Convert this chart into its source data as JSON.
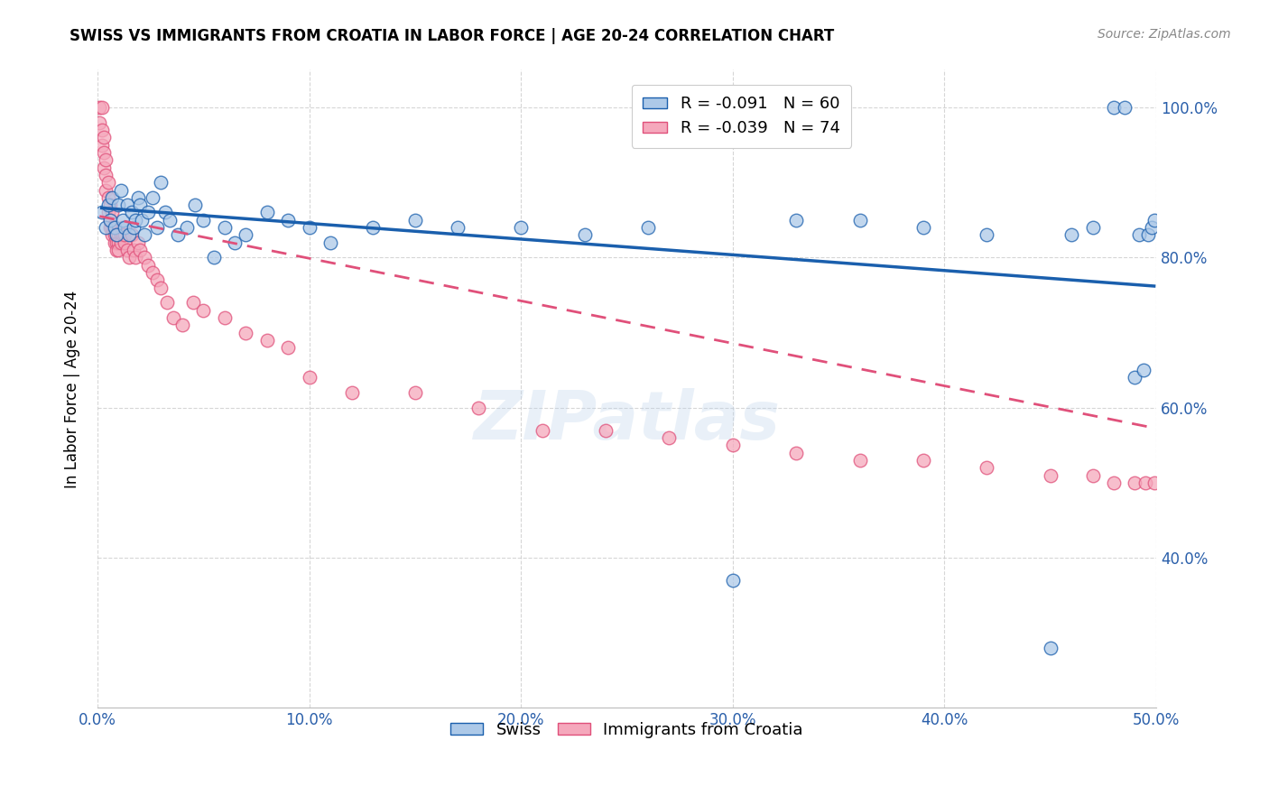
{
  "title": "SWISS VS IMMIGRANTS FROM CROATIA IN LABOR FORCE | AGE 20-24 CORRELATION CHART",
  "source": "Source: ZipAtlas.com",
  "ylabel": "In Labor Force | Age 20-24",
  "xlim": [
    0.0,
    0.5
  ],
  "ylim": [
    0.2,
    1.05
  ],
  "xticks": [
    0.0,
    0.1,
    0.2,
    0.3,
    0.4,
    0.5
  ],
  "yticks": [
    0.4,
    0.6,
    0.8,
    1.0
  ],
  "ytick_labels": [
    "40.0%",
    "60.0%",
    "80.0%",
    "100.0%"
  ],
  "xtick_labels": [
    "0.0%",
    "10.0%",
    "20.0%",
    "30.0%",
    "40.0%",
    "50.0%"
  ],
  "legend_r_swiss": "R = -0.091",
  "legend_n_swiss": "N = 60",
  "legend_r_croatia": "R = -0.039",
  "legend_n_croatia": "N = 74",
  "swiss_color": "#adc9e8",
  "croatia_color": "#f5a8bc",
  "swiss_line_color": "#1a5fad",
  "croatia_line_color": "#e0507a",
  "watermark": "ZIPatlas",
  "swiss_x": [
    0.002,
    0.004,
    0.005,
    0.006,
    0.007,
    0.008,
    0.009,
    0.01,
    0.011,
    0.012,
    0.013,
    0.014,
    0.015,
    0.016,
    0.017,
    0.018,
    0.019,
    0.02,
    0.021,
    0.022,
    0.024,
    0.026,
    0.028,
    0.03,
    0.032,
    0.034,
    0.038,
    0.042,
    0.046,
    0.05,
    0.055,
    0.06,
    0.065,
    0.07,
    0.08,
    0.09,
    0.1,
    0.11,
    0.13,
    0.15,
    0.17,
    0.2,
    0.23,
    0.26,
    0.3,
    0.33,
    0.36,
    0.39,
    0.42,
    0.45,
    0.46,
    0.47,
    0.48,
    0.485,
    0.49,
    0.492,
    0.494,
    0.496,
    0.498,
    0.499
  ],
  "swiss_y": [
    0.86,
    0.84,
    0.87,
    0.85,
    0.88,
    0.84,
    0.83,
    0.87,
    0.89,
    0.85,
    0.84,
    0.87,
    0.83,
    0.86,
    0.84,
    0.85,
    0.88,
    0.87,
    0.85,
    0.83,
    0.86,
    0.88,
    0.84,
    0.9,
    0.86,
    0.85,
    0.83,
    0.84,
    0.87,
    0.85,
    0.8,
    0.84,
    0.82,
    0.83,
    0.86,
    0.85,
    0.84,
    0.82,
    0.84,
    0.85,
    0.84,
    0.84,
    0.83,
    0.84,
    0.37,
    0.85,
    0.85,
    0.84,
    0.83,
    0.28,
    0.83,
    0.84,
    1.0,
    1.0,
    0.64,
    0.83,
    0.65,
    0.83,
    0.84,
    0.85
  ],
  "croatia_x": [
    0.001,
    0.001,
    0.002,
    0.002,
    0.002,
    0.003,
    0.003,
    0.003,
    0.004,
    0.004,
    0.004,
    0.005,
    0.005,
    0.005,
    0.006,
    0.006,
    0.006,
    0.007,
    0.007,
    0.007,
    0.008,
    0.008,
    0.008,
    0.009,
    0.009,
    0.009,
    0.01,
    0.01,
    0.01,
    0.011,
    0.011,
    0.012,
    0.012,
    0.013,
    0.013,
    0.014,
    0.015,
    0.016,
    0.017,
    0.018,
    0.019,
    0.02,
    0.022,
    0.024,
    0.026,
    0.028,
    0.03,
    0.033,
    0.036,
    0.04,
    0.045,
    0.05,
    0.06,
    0.07,
    0.08,
    0.09,
    0.1,
    0.12,
    0.15,
    0.18,
    0.21,
    0.24,
    0.27,
    0.3,
    0.33,
    0.36,
    0.39,
    0.42,
    0.45,
    0.47,
    0.48,
    0.49,
    0.495,
    0.499
  ],
  "croatia_y": [
    1.0,
    0.98,
    1.0,
    0.97,
    0.95,
    0.96,
    0.94,
    0.92,
    0.93,
    0.91,
    0.89,
    0.9,
    0.88,
    0.86,
    0.87,
    0.85,
    0.84,
    0.86,
    0.84,
    0.83,
    0.84,
    0.83,
    0.82,
    0.83,
    0.82,
    0.81,
    0.83,
    0.82,
    0.81,
    0.83,
    0.82,
    0.84,
    0.83,
    0.82,
    0.83,
    0.81,
    0.8,
    0.83,
    0.81,
    0.8,
    0.82,
    0.81,
    0.8,
    0.79,
    0.78,
    0.77,
    0.76,
    0.74,
    0.72,
    0.71,
    0.74,
    0.73,
    0.72,
    0.7,
    0.69,
    0.68,
    0.64,
    0.62,
    0.62,
    0.6,
    0.57,
    0.57,
    0.56,
    0.55,
    0.54,
    0.53,
    0.53,
    0.52,
    0.51,
    0.51,
    0.5,
    0.5,
    0.5,
    0.5
  ],
  "swiss_trend_x": [
    0.002,
    0.499
  ],
  "swiss_trend_y": [
    0.866,
    0.762
  ],
  "croatia_trend_x": [
    0.001,
    0.499
  ],
  "croatia_trend_y": [
    0.855,
    0.573
  ]
}
